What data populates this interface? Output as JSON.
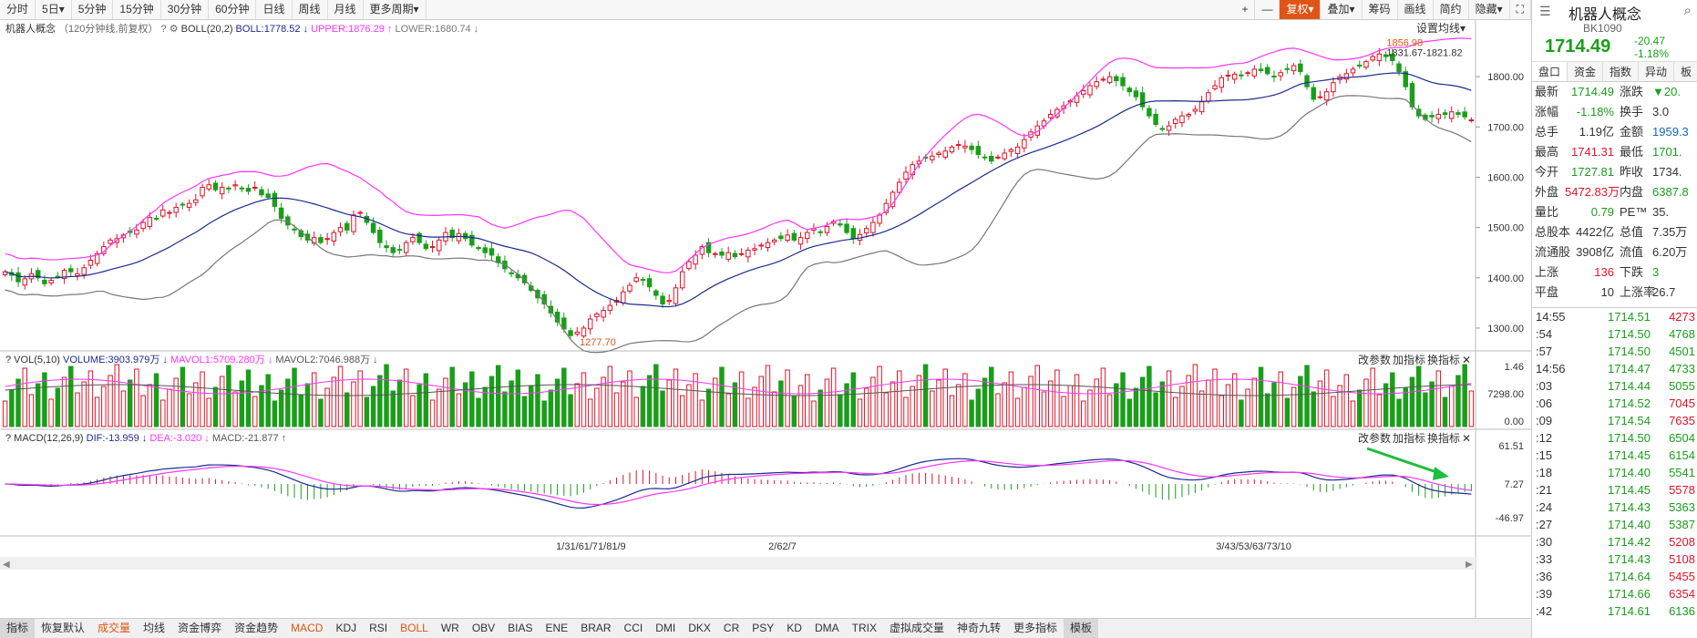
{
  "toolbar": {
    "periods": [
      "分时",
      "5日▾",
      "5分钟",
      "15分钟",
      "30分钟",
      "60分钟",
      "日线",
      "周线",
      "月线",
      "更多周期▾"
    ],
    "active_period": "120分钟",
    "right_tools": [
      "+",
      "—",
      "复权▾",
      "叠加▾",
      "筹码",
      "画线",
      "简约",
      "隐藏▾",
      "⛶"
    ],
    "active_tool": "复权▾"
  },
  "main_panel": {
    "stock_name": "机器人概念",
    "period_desc": "（120分钟线,前复权）",
    "help": "?",
    "gear": "⚙",
    "boll_label": "BOLL(20,2)",
    "boll_mid": "BOLL:1778.52 ↓",
    "boll_upper": "UPPER:1876.29 ↑",
    "boll_lower": "LOWER:1680.74 ↓",
    "settings": "设置均线▾",
    "y_ticks": [
      {
        "value": 1300,
        "label": "1300.00"
      },
      {
        "value": 1400,
        "label": "1400.00"
      },
      {
        "value": 1500,
        "label": "1500.00"
      },
      {
        "value": 1600,
        "label": "1600.00"
      },
      {
        "value": 1700,
        "label": "1700.00"
      },
      {
        "value": 1800,
        "label": "1800.00"
      }
    ],
    "low_annotation": "1277.70",
    "high_annotation": "1856.98",
    "crosshair_label": "1831.67-1821.82"
  },
  "vol_panel": {
    "label": "VOL(5,10)",
    "volume": "VOLUME:3903.979万 ↓",
    "mavol1": "MAVOL1:5709.280万 ↓",
    "mavol2": "MAVOL2:7046.988万 ↓",
    "buttons": [
      "改参数",
      "加指标",
      "换指标",
      "✕"
    ],
    "y_ticks": [
      "1.46",
      "7298.00",
      "0.00"
    ]
  },
  "macd_panel": {
    "label": "MACD(12,26,9)",
    "dif": "DIF:-13.959 ↓",
    "dea": "DEA:-3.020 ↓",
    "macd": "MACD:-21.877 ↑",
    "buttons": [
      "改参数",
      "加指标",
      "换指标",
      "✕"
    ],
    "y_ticks": [
      "61.51",
      "7.27",
      "-46.97"
    ]
  },
  "x_labels": [
    {
      "text": "1/31/61/71/81/9",
      "at": 0.4
    },
    {
      "text": "2/62/7",
      "at": 0.53
    },
    {
      "text": "3/43/53/63/73/10",
      "at": 0.85
    }
  ],
  "bottom_tabs": [
    "指标",
    "恢复默认",
    "成交量",
    "均线",
    "资金博弈",
    "资金趋势",
    "MACD",
    "KDJ",
    "RSI",
    "BOLL",
    "WR",
    "OBV",
    "BIAS",
    "ENE",
    "BRAR",
    "CCI",
    "DMI",
    "DKX",
    "CR",
    "PSY",
    "KD",
    "DMA",
    "TRIX",
    "虚拟成交量",
    "神奇九转",
    "更多指标",
    "模板"
  ],
  "bottom_highlight": [
    "成交量",
    "MACD",
    "BOLL"
  ],
  "quote": {
    "name": "机器人概念",
    "code": "BK1090",
    "price": "1714.49",
    "change": "-20.47",
    "change_pct": "-1.18%",
    "tabs": [
      "盘口",
      "资金",
      "指数",
      "异动",
      "板"
    ],
    "rows": [
      [
        "最新",
        "1714.49",
        "green",
        "涨跌",
        "▼20.",
        "green"
      ],
      [
        "涨幅",
        "-1.18%",
        "green",
        "换手",
        "3.0",
        "black"
      ],
      [
        "总手",
        "1.19亿",
        "black",
        "金额",
        "1959.3",
        "blue"
      ],
      [
        "最高",
        "1741.31",
        "red",
        "最低",
        "1701.",
        "green"
      ],
      [
        "今开",
        "1727.81",
        "green",
        "昨收",
        "1734.",
        "black"
      ],
      [
        "外盘",
        "5472.83万",
        "red",
        "内盘",
        "6387.8",
        "green"
      ],
      [
        "量比",
        "0.79",
        "green",
        "PE™",
        "35.",
        "black"
      ],
      [
        "总股本",
        "4422亿",
        "black",
        "总值",
        "7.35万",
        "black"
      ],
      [
        "流通股",
        "3908亿",
        "black",
        "流值",
        "6.20万",
        "black"
      ],
      [
        "上涨",
        "136",
        "red",
        "下跌",
        "3",
        "green"
      ],
      [
        "平盘",
        "10",
        "black",
        "上涨率",
        "26.7",
        "black"
      ]
    ],
    "ticks": [
      [
        "14:55",
        "1714.51",
        "4273",
        "red"
      ],
      [
        ":54",
        "1714.50",
        "4768",
        "green"
      ],
      [
        ":57",
        "1714.50",
        "4501",
        "green"
      ],
      [
        "14:56",
        "1714.47",
        "4733",
        "green"
      ],
      [
        ":03",
        "1714.44",
        "5055",
        "green"
      ],
      [
        ":06",
        "1714.52",
        "7045",
        "red"
      ],
      [
        ":09",
        "1714.54",
        "7635",
        "red"
      ],
      [
        ":12",
        "1714.50",
        "6504",
        "green"
      ],
      [
        ":15",
        "1714.45",
        "6154",
        "green"
      ],
      [
        ":18",
        "1714.40",
        "5541",
        "green"
      ],
      [
        ":21",
        "1714.45",
        "5578",
        "red"
      ],
      [
        ":24",
        "1714.43",
        "5363",
        "green"
      ],
      [
        ":27",
        "1714.40",
        "5387",
        "green"
      ],
      [
        ":30",
        "1714.42",
        "5208",
        "red"
      ],
      [
        ":33",
        "1714.43",
        "5108",
        "red"
      ],
      [
        ":36",
        "1714.64",
        "5455",
        "red"
      ],
      [
        ":39",
        "1714.66",
        "6354",
        "red"
      ],
      [
        ":42",
        "1714.61",
        "6136",
        "green"
      ]
    ]
  },
  "colors": {
    "up": "#e0142a",
    "down": "#1a9e1a",
    "upper": "#ff33ff",
    "mid": "#1b2b8f",
    "lower": "#777777",
    "accent": "#e05515"
  },
  "chart_data": {
    "type": "candlestick",
    "closes": [
      1412,
      1405,
      1392,
      1398,
      1408,
      1400,
      1388,
      1395,
      1402,
      1415,
      1412,
      1408,
      1420,
      1435,
      1448,
      1462,
      1475,
      1478,
      1485,
      1490,
      1495,
      1510,
      1520,
      1518,
      1535,
      1530,
      1540,
      1545,
      1548,
      1555,
      1580,
      1585,
      1575,
      1580,
      1578,
      1585,
      1578,
      1572,
      1580,
      1565,
      1560,
      1542,
      1518,
      1505,
      1495,
      1482,
      1475,
      1480,
      1470,
      1478,
      1490,
      1500,
      1495,
      1525,
      1530,
      1510,
      1490,
      1470,
      1460,
      1450,
      1455,
      1470,
      1480,
      1470,
      1458,
      1462,
      1475,
      1490,
      1480,
      1488,
      1478,
      1465,
      1458,
      1450,
      1445,
      1430,
      1418,
      1408,
      1400,
      1390,
      1375,
      1360,
      1348,
      1330,
      1312,
      1298,
      1285,
      1292,
      1300,
      1318,
      1328,
      1335,
      1345,
      1355,
      1372,
      1385,
      1400,
      1395,
      1382,
      1365,
      1348,
      1355,
      1380,
      1412,
      1432,
      1445,
      1462,
      1450,
      1448,
      1445,
      1450,
      1442,
      1448,
      1455,
      1458,
      1465,
      1470,
      1475,
      1478,
      1485,
      1475,
      1480,
      1490,
      1498,
      1490,
      1502,
      1512,
      1505,
      1490,
      1478,
      1486,
      1498,
      1510,
      1525,
      1548,
      1570,
      1590,
      1610,
      1625,
      1632,
      1638,
      1642,
      1648,
      1652,
      1660,
      1665,
      1662,
      1655,
      1645,
      1640,
      1632,
      1640,
      1648,
      1655,
      1660,
      1675,
      1690,
      1702,
      1712,
      1725,
      1735,
      1742,
      1752,
      1762,
      1772,
      1782,
      1790,
      1795,
      1800,
      1792,
      1782,
      1770,
      1760,
      1740,
      1722,
      1705,
      1695,
      1702,
      1715,
      1722,
      1725,
      1735,
      1750,
      1768,
      1782,
      1798,
      1803,
      1805,
      1802,
      1808,
      1815,
      1812,
      1806,
      1800,
      1808,
      1815,
      1822,
      1810,
      1780,
      1755,
      1760,
      1770,
      1788,
      1800,
      1806,
      1815,
      1822,
      1830,
      1840,
      1845,
      1840,
      1832,
      1810,
      1780,
      1740,
      1722,
      1715,
      1720,
      1725,
      1725,
      1730,
      1725,
      1720,
      1714
    ],
    "volume_ticks": [
      "1.46",
      "7298.00",
      "0.00"
    ],
    "macd_ticks": [
      "61.51",
      "7.27",
      "-46.97"
    ],
    "ylim": [
      1260,
      1880
    ]
  }
}
